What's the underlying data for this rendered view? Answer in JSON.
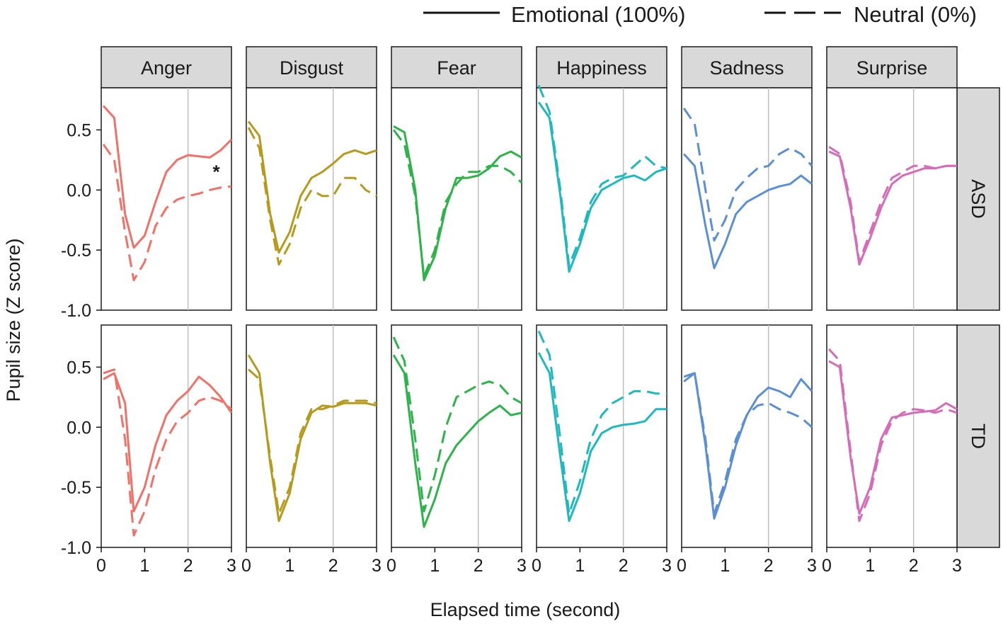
{
  "chart_data": {
    "type": "line",
    "title": "",
    "xlabel": "Elapsed time (second)",
    "ylabel": "Pupil size (Z score)",
    "xlim": [
      0,
      3
    ],
    "ylim": [
      -1.0,
      0.85
    ],
    "x_ticks": [
      0,
      1,
      2,
      3
    ],
    "x_tick_labels": [
      "0",
      "1",
      "2",
      "3"
    ],
    "y_ticks": [
      0.5,
      0.0,
      -0.5,
      -1.0
    ],
    "y_tick_labels": [
      "0.5",
      "0.0",
      "-0.5",
      "-1.0"
    ],
    "reference_line_x": 2,
    "legend": {
      "placement": "top-right",
      "entries": [
        {
          "label": "Emotional (100%)",
          "linestyle": "solid"
        },
        {
          "label": "Neutral (0%)",
          "linestyle": "dashed"
        }
      ]
    },
    "columns": [
      "Anger",
      "Disgust",
      "Fear",
      "Happiness",
      "Sadness",
      "Surprise"
    ],
    "rows": [
      "ASD",
      "TD"
    ],
    "colors": {
      "Anger": "#f07167",
      "Disgust": "#b59a1e",
      "Fear": "#2db34a",
      "Happiness": "#1fb8bf",
      "Sadness": "#5b8fd4",
      "Surprise": "#d46cb8"
    },
    "annotations": [
      {
        "panel": "Anger-ASD",
        "x": 2.65,
        "y": 0.17,
        "text": "*"
      }
    ],
    "x": [
      0.05,
      0.3,
      0.55,
      0.75,
      1.0,
      1.25,
      1.5,
      1.75,
      2.0,
      2.25,
      2.5,
      2.75,
      3.0
    ],
    "panels": [
      {
        "column": "Anger",
        "row": "ASD",
        "emotional": [
          0.7,
          0.6,
          -0.2,
          -0.48,
          -0.38,
          -0.1,
          0.15,
          0.25,
          0.29,
          0.28,
          0.27,
          0.33,
          0.42
        ],
        "neutral": [
          0.38,
          0.25,
          -0.35,
          -0.75,
          -0.6,
          -0.3,
          -0.15,
          -0.08,
          -0.05,
          -0.03,
          0.0,
          0.02,
          0.03
        ]
      },
      {
        "column": "Disgust",
        "row": "ASD",
        "emotional": [
          0.57,
          0.45,
          -0.2,
          -0.52,
          -0.35,
          -0.05,
          0.1,
          0.15,
          0.22,
          0.3,
          0.33,
          0.3,
          0.33
        ],
        "neutral": [
          0.52,
          0.35,
          -0.25,
          -0.62,
          -0.45,
          -0.15,
          0.0,
          -0.05,
          -0.05,
          0.1,
          0.1,
          0.0,
          -0.05
        ]
      },
      {
        "column": "Fear",
        "row": "ASD",
        "emotional": [
          0.53,
          0.48,
          0.0,
          -0.75,
          -0.55,
          -0.15,
          0.1,
          0.1,
          0.12,
          0.18,
          0.28,
          0.32,
          0.27
        ],
        "neutral": [
          0.5,
          0.38,
          -0.05,
          -0.72,
          -0.5,
          -0.1,
          0.05,
          0.15,
          0.15,
          0.2,
          0.2,
          0.15,
          0.06
        ]
      },
      {
        "column": "Happiness",
        "row": "ASD",
        "emotional": [
          0.73,
          0.6,
          -0.05,
          -0.68,
          -0.45,
          -0.15,
          0.0,
          0.05,
          0.1,
          0.12,
          0.08,
          0.15,
          0.18
        ],
        "neutral": [
          0.87,
          0.65,
          0.0,
          -0.63,
          -0.4,
          -0.1,
          0.05,
          0.1,
          0.12,
          0.2,
          0.28,
          0.2,
          0.18
        ]
      },
      {
        "column": "Sadness",
        "row": "ASD",
        "emotional": [
          0.3,
          0.2,
          -0.3,
          -0.65,
          -0.45,
          -0.2,
          -0.1,
          -0.05,
          0.0,
          0.03,
          0.05,
          0.12,
          0.05
        ],
        "neutral": [
          0.68,
          0.55,
          0.0,
          -0.42,
          -0.25,
          0.0,
          0.1,
          0.18,
          0.2,
          0.3,
          0.35,
          0.3,
          0.2
        ]
      },
      {
        "column": "Surprise",
        "row": "ASD",
        "emotional": [
          0.32,
          0.28,
          -0.15,
          -0.62,
          -0.4,
          -0.15,
          0.05,
          0.12,
          0.15,
          0.18,
          0.18,
          0.2,
          0.2
        ],
        "neutral": [
          0.36,
          0.3,
          -0.1,
          -0.6,
          -0.35,
          -0.1,
          0.1,
          0.15,
          0.2,
          0.2,
          0.18,
          0.2,
          0.2
        ]
      },
      {
        "column": "Anger",
        "row": "TD",
        "emotional": [
          0.4,
          0.45,
          0.2,
          -0.7,
          -0.5,
          -0.15,
          0.1,
          0.22,
          0.3,
          0.42,
          0.35,
          0.25,
          0.12
        ],
        "neutral": [
          0.45,
          0.48,
          -0.1,
          -0.9,
          -0.7,
          -0.35,
          -0.1,
          0.05,
          0.12,
          0.22,
          0.25,
          0.22,
          0.15
        ]
      },
      {
        "column": "Disgust",
        "row": "TD",
        "emotional": [
          0.6,
          0.45,
          -0.3,
          -0.78,
          -0.55,
          -0.1,
          0.12,
          0.18,
          0.17,
          0.2,
          0.2,
          0.2,
          0.18
        ],
        "neutral": [
          0.48,
          0.4,
          -0.25,
          -0.72,
          -0.5,
          -0.05,
          0.15,
          0.15,
          0.18,
          0.22,
          0.22,
          0.22,
          0.2
        ]
      },
      {
        "column": "Fear",
        "row": "TD",
        "emotional": [
          0.6,
          0.45,
          -0.3,
          -0.83,
          -0.6,
          -0.3,
          -0.15,
          -0.05,
          0.05,
          0.12,
          0.18,
          0.1,
          0.12
        ],
        "neutral": [
          0.75,
          0.55,
          -0.1,
          -0.7,
          -0.4,
          0.0,
          0.25,
          0.3,
          0.35,
          0.38,
          0.35,
          0.25,
          0.2
        ]
      },
      {
        "column": "Happiness",
        "row": "TD",
        "emotional": [
          0.62,
          0.45,
          -0.25,
          -0.78,
          -0.55,
          -0.2,
          -0.05,
          0.0,
          0.02,
          0.03,
          0.05,
          0.15,
          0.15
        ],
        "neutral": [
          0.8,
          0.6,
          -0.1,
          -0.72,
          -0.45,
          -0.1,
          0.1,
          0.2,
          0.25,
          0.3,
          0.3,
          0.28,
          0.28
        ]
      },
      {
        "column": "Sadness",
        "row": "TD",
        "emotional": [
          0.42,
          0.45,
          -0.15,
          -0.76,
          -0.5,
          -0.15,
          0.1,
          0.25,
          0.33,
          0.3,
          0.25,
          0.4,
          0.3
        ],
        "neutral": [
          0.38,
          0.45,
          -0.1,
          -0.72,
          -0.45,
          -0.1,
          0.1,
          0.18,
          0.2,
          0.15,
          0.12,
          0.08,
          0.0
        ]
      },
      {
        "column": "Surprise",
        "row": "TD",
        "emotional": [
          0.55,
          0.5,
          -0.25,
          -0.72,
          -0.5,
          -0.1,
          0.08,
          0.1,
          0.12,
          0.13,
          0.14,
          0.2,
          0.15
        ],
        "neutral": [
          0.65,
          0.55,
          -0.2,
          -0.78,
          -0.55,
          -0.15,
          0.05,
          0.12,
          0.15,
          0.14,
          0.12,
          0.15,
          0.12
        ]
      }
    ]
  }
}
